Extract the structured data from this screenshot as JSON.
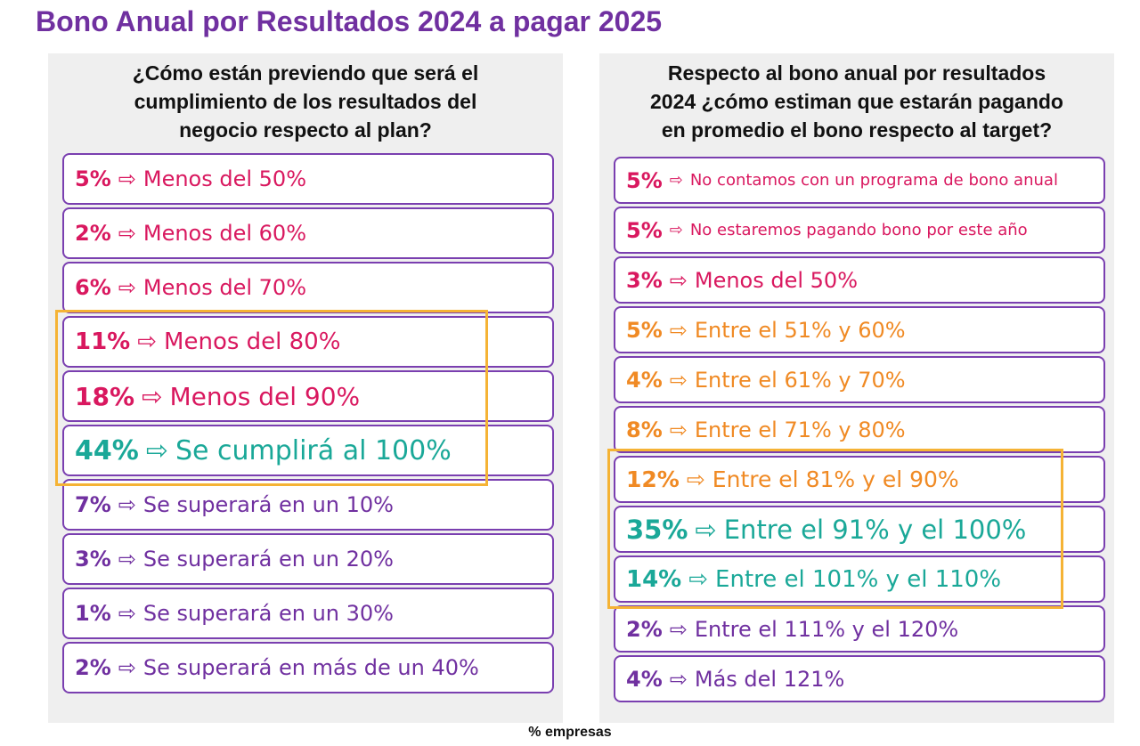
{
  "title": "Bono Anual por Resultados 2024 a pagar 2025",
  "arrow_glyph": "⇨",
  "left": {
    "question_lines": [
      "¿Cómo están previendo que será el",
      "cumplimiento de los resultados del",
      "negocio respecto al plan?"
    ],
    "items": [
      {
        "pct": "5%",
        "label": "Menos del 50%",
        "color": "#d9185f"
      },
      {
        "pct": "2%",
        "label": "Menos del 60%",
        "color": "#d9185f"
      },
      {
        "pct": "6%",
        "label": "Menos del 70%",
        "color": "#d9185f"
      },
      {
        "pct": "11%",
        "label": "Menos del 80%",
        "color": "#d9185f"
      },
      {
        "pct": "18%",
        "label": "Menos del 90%",
        "color": "#d9185f"
      },
      {
        "pct": "44%",
        "label": "Se cumplirá al 100%",
        "color": "#1aa898"
      },
      {
        "pct": "7%",
        "label": "Se superará en un 10%",
        "color": "#7030a0"
      },
      {
        "pct": "3%",
        "label": "Se superará en un 20%",
        "color": "#7030a0"
      },
      {
        "pct": "1%",
        "label": "Se superará en un 30%",
        "color": "#7030a0"
      },
      {
        "pct": "2%",
        "label": "Se superará en más de un 40%",
        "color": "#7030a0"
      }
    ]
  },
  "right": {
    "question_lines": [
      "Respecto al bono anual por resultados",
      "2024 ¿cómo estiman que estarán pagando",
      "en promedio el bono respecto al target?"
    ],
    "items": [
      {
        "pct": "5%",
        "label": "No contamos con un programa de bono anual",
        "color": "#d9185f"
      },
      {
        "pct": "5%",
        "label": "No estaremos pagando bono por este año",
        "color": "#d9185f"
      },
      {
        "pct": "3%",
        "label": "Menos del 50%",
        "color": "#d9185f"
      },
      {
        "pct": "5%",
        "label": "Entre el 51% y 60%",
        "color": "#f08a24"
      },
      {
        "pct": "4%",
        "label": "Entre el 61% y 70%",
        "color": "#f08a24"
      },
      {
        "pct": "8%",
        "label": "Entre el 71% y 80%",
        "color": "#f08a24"
      },
      {
        "pct": "12%",
        "label": "Entre el 81% y el 90%",
        "color": "#f08a24"
      },
      {
        "pct": "35%",
        "label": "Entre el 91% y el 100%",
        "color": "#1aa898"
      },
      {
        "pct": "14%",
        "label": "Entre el 101% y el 110%",
        "color": "#1aa898"
      },
      {
        "pct": "2%",
        "label": "Entre el 111% y el 120%",
        "color": "#7030a0"
      },
      {
        "pct": "4%",
        "label": "Más del 121%",
        "color": "#7030a0"
      }
    ]
  },
  "highlight_color": "#f5b335",
  "item_border_color": "#7a3fb0",
  "footer": "% empresas"
}
